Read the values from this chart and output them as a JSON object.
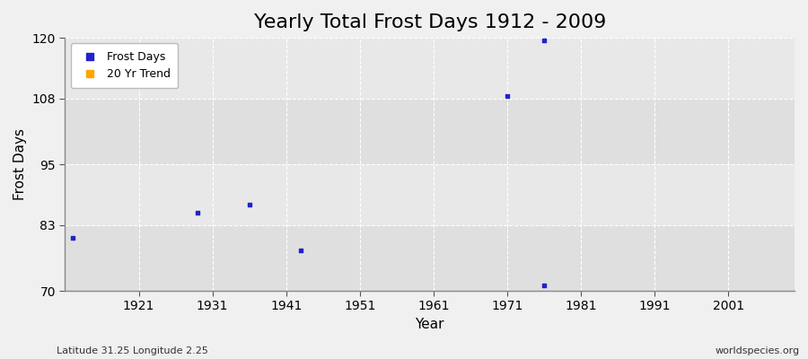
{
  "title": "Yearly Total Frost Days 1912 - 2009",
  "xlabel": "Year",
  "ylabel": "Frost Days",
  "xlim": [
    1911,
    2010
  ],
  "ylim": [
    70,
    120
  ],
  "yticks": [
    70,
    83,
    95,
    108,
    120
  ],
  "xticks": [
    1921,
    1931,
    1941,
    1951,
    1961,
    1971,
    1981,
    1991,
    2001
  ],
  "scatter_years": [
    1912,
    1929,
    1936,
    1943,
    1971,
    1976,
    1976
  ],
  "scatter_values": [
    80.5,
    85.5,
    87,
    78,
    108.5,
    119.5,
    71
  ],
  "point_color": "#2222cc",
  "fig_background_color": "#f0f0f0",
  "plot_bg_color": "#e8e8e8",
  "grid_color": "#ffffff",
  "subtitle_left": "Latitude 31.25 Longitude 2.25",
  "subtitle_right": "worldspecies.org",
  "legend_frost_color": "#2222cc",
  "legend_trend_color": "#FFA500",
  "title_fontsize": 16,
  "axis_label_fontsize": 11,
  "tick_fontsize": 10,
  "legend_fontsize": 9
}
